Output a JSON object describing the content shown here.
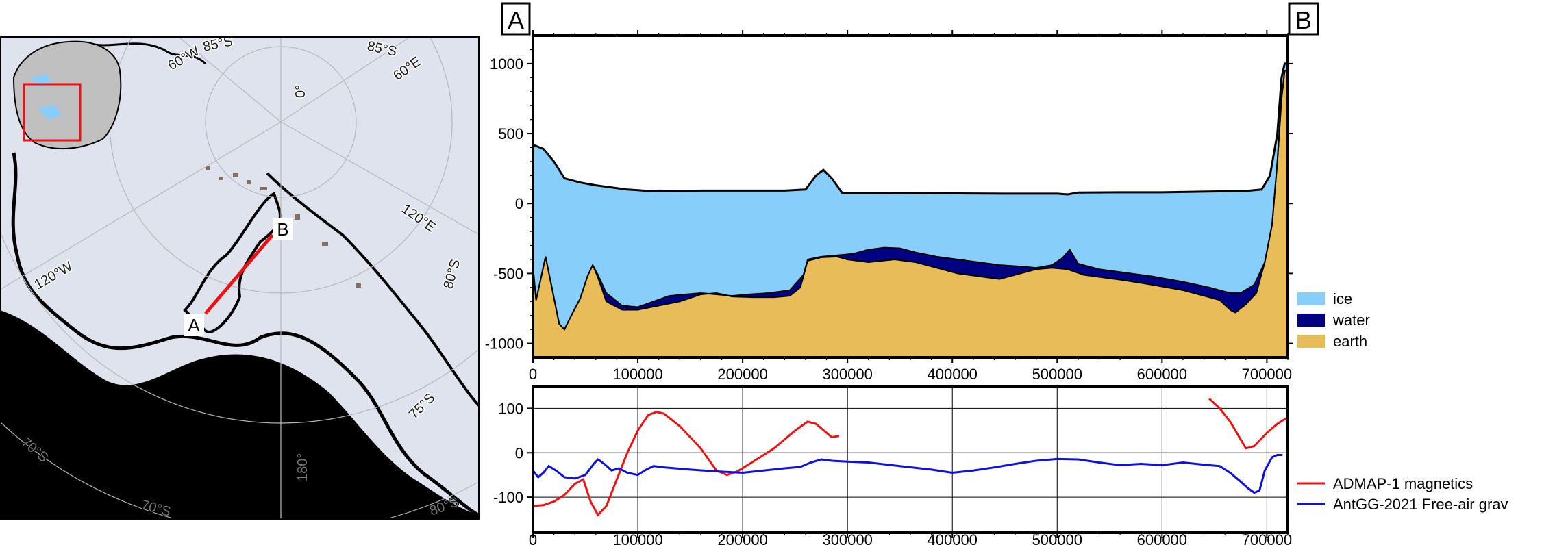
{
  "colors": {
    "ice": "#87cefa",
    "water": "#000080",
    "earth": "#e8bc58",
    "magnetics": "#ee1111",
    "gravity": "#1010dd",
    "ocean": "#000000",
    "ice_surface": "#dfe3ee",
    "profile_line": "#ee1111"
  },
  "map": {
    "graticule_labels": [
      "85°S",
      "85°S",
      "60°W",
      "60°E",
      "0°",
      "120°E",
      "120°W",
      "80°S",
      "75°S",
      "70°S",
      "70°S",
      "180°",
      "80°S",
      "70°S",
      "0°S"
    ],
    "profile_start_label": "A",
    "profile_end_label": "B",
    "inset_icon": "antarctica-inset-icon"
  },
  "profile_corner_labels": {
    "start": "A",
    "end": "B"
  },
  "chart_data": [
    {
      "type": "area",
      "title": "",
      "xlabel": "",
      "ylabel": "",
      "xlim": [
        0,
        720000
      ],
      "ylim": [
        -1100,
        1200
      ],
      "x_ticks": [
        "0",
        "100000",
        "200000",
        "300000",
        "400000",
        "500000",
        "600000",
        "700000"
      ],
      "y_ticks": [
        "1000",
        "500",
        "0",
        "-500",
        "-1000"
      ],
      "legend": [
        "ice",
        "water",
        "earth"
      ],
      "legend_position": "right",
      "surface": [
        [
          0,
          420
        ],
        [
          10,
          390
        ],
        [
          20,
          300
        ],
        [
          30,
          180
        ],
        [
          45,
          150
        ],
        [
          60,
          130
        ],
        [
          75,
          115
        ],
        [
          90,
          100
        ],
        [
          100,
          95
        ],
        [
          110,
          90
        ],
        [
          120,
          92
        ],
        [
          140,
          90
        ],
        [
          160,
          92
        ],
        [
          200,
          92
        ],
        [
          240,
          92
        ],
        [
          260,
          100
        ],
        [
          270,
          200
        ],
        [
          277,
          240
        ],
        [
          285,
          180
        ],
        [
          295,
          75
        ],
        [
          320,
          75
        ],
        [
          400,
          72
        ],
        [
          450,
          70
        ],
        [
          500,
          70
        ],
        [
          510,
          65
        ],
        [
          520,
          78
        ],
        [
          560,
          80
        ],
        [
          600,
          80
        ],
        [
          680,
          90
        ],
        [
          695,
          100
        ],
        [
          703,
          200
        ],
        [
          710,
          500
        ],
        [
          714,
          900
        ],
        [
          717,
          1000
        ],
        [
          720,
          1000
        ]
      ],
      "ice_base": [
        [
          0,
          -450
        ],
        [
          3,
          -690
        ],
        [
          8,
          -520
        ],
        [
          12,
          -380
        ],
        [
          18,
          -600
        ],
        [
          25,
          -860
        ],
        [
          30,
          -900
        ],
        [
          38,
          -780
        ],
        [
          45,
          -680
        ],
        [
          52,
          -520
        ],
        [
          57,
          -440
        ],
        [
          62,
          -510
        ],
        [
          70,
          -640
        ],
        [
          85,
          -730
        ],
        [
          100,
          -740
        ],
        [
          115,
          -700
        ],
        [
          130,
          -660
        ],
        [
          145,
          -650
        ],
        [
          160,
          -640
        ],
        [
          175,
          -650
        ],
        [
          190,
          -660
        ],
        [
          205,
          -650
        ],
        [
          225,
          -640
        ],
        [
          245,
          -620
        ],
        [
          258,
          -510
        ],
        [
          262,
          -400
        ],
        [
          275,
          -380
        ],
        [
          290,
          -370
        ],
        [
          305,
          -360
        ],
        [
          320,
          -330
        ],
        [
          335,
          -315
        ],
        [
          350,
          -320
        ],
        [
          365,
          -350
        ],
        [
          385,
          -380
        ],
        [
          405,
          -400
        ],
        [
          425,
          -420
        ],
        [
          445,
          -440
        ],
        [
          465,
          -450
        ],
        [
          480,
          -460
        ],
        [
          495,
          -440
        ],
        [
          505,
          -390
        ],
        [
          512,
          -330
        ],
        [
          520,
          -430
        ],
        [
          540,
          -470
        ],
        [
          560,
          -490
        ],
        [
          590,
          -520
        ],
        [
          620,
          -560
        ],
        [
          645,
          -600
        ],
        [
          665,
          -640
        ],
        [
          675,
          -640
        ],
        [
          688,
          -580
        ],
        [
          698,
          -420
        ],
        [
          705,
          -150
        ],
        [
          710,
          300
        ],
        [
          714,
          750
        ],
        [
          717,
          950
        ],
        [
          720,
          950
        ]
      ],
      "bed": [
        [
          0,
          -450
        ],
        [
          3,
          -690
        ],
        [
          8,
          -520
        ],
        [
          12,
          -380
        ],
        [
          18,
          -600
        ],
        [
          25,
          -860
        ],
        [
          30,
          -900
        ],
        [
          38,
          -780
        ],
        [
          45,
          -680
        ],
        [
          52,
          -520
        ],
        [
          57,
          -440
        ],
        [
          62,
          -530
        ],
        [
          70,
          -700
        ],
        [
          85,
          -760
        ],
        [
          100,
          -760
        ],
        [
          120,
          -730
        ],
        [
          140,
          -700
        ],
        [
          160,
          -650
        ],
        [
          175,
          -640
        ],
        [
          190,
          -665
        ],
        [
          210,
          -670
        ],
        [
          230,
          -670
        ],
        [
          245,
          -660
        ],
        [
          255,
          -600
        ],
        [
          262,
          -410
        ],
        [
          275,
          -385
        ],
        [
          290,
          -380
        ],
        [
          300,
          -400
        ],
        [
          320,
          -420
        ],
        [
          345,
          -400
        ],
        [
          365,
          -420
        ],
        [
          385,
          -460
        ],
        [
          405,
          -500
        ],
        [
          425,
          -520
        ],
        [
          445,
          -540
        ],
        [
          465,
          -500
        ],
        [
          480,
          -470
        ],
        [
          495,
          -460
        ],
        [
          510,
          -470
        ],
        [
          525,
          -510
        ],
        [
          545,
          -530
        ],
        [
          565,
          -550
        ],
        [
          590,
          -580
        ],
        [
          620,
          -620
        ],
        [
          640,
          -660
        ],
        [
          655,
          -690
        ],
        [
          665,
          -760
        ],
        [
          670,
          -780
        ],
        [
          680,
          -720
        ],
        [
          690,
          -640
        ],
        [
          698,
          -420
        ],
        [
          705,
          -150
        ],
        [
          710,
          300
        ],
        [
          714,
          750
        ],
        [
          717,
          950
        ],
        [
          720,
          950
        ]
      ],
      "x_unit_note": ""
    },
    {
      "type": "line",
      "title": "",
      "xlabel": "",
      "ylabel": "",
      "xlim": [
        0,
        720000
      ],
      "ylim": [
        -180,
        150
      ],
      "x_ticks": [
        "0",
        "100000",
        "200000",
        "300000",
        "400000",
        "500000",
        "600000",
        "700000"
      ],
      "y_ticks": [
        "100",
        "0",
        "-100"
      ],
      "grid": true,
      "legend_position": "bottom-right",
      "series": [
        {
          "name": "ADMAP-1 magnetics",
          "segments": [
            [
              [
                0,
                -120
              ],
              [
                10,
                -118
              ],
              [
                20,
                -110
              ],
              [
                30,
                -95
              ],
              [
                40,
                -70
              ],
              [
                48,
                -60
              ],
              [
                55,
                -110
              ],
              [
                62,
                -140
              ],
              [
                70,
                -120
              ],
              [
                80,
                -60
              ],
              [
                90,
                0
              ],
              [
                100,
                50
              ],
              [
                110,
                85
              ],
              [
                118,
                92
              ],
              [
                125,
                88
              ],
              [
                140,
                60
              ],
              [
                160,
                10
              ],
              [
                175,
                -40
              ],
              [
                185,
                -50
              ],
              [
                195,
                -42
              ],
              [
                210,
                -20
              ],
              [
                230,
                10
              ],
              [
                250,
                50
              ],
              [
                262,
                70
              ],
              [
                270,
                65
              ],
              [
                280,
                45
              ],
              [
                285,
                35
              ],
              [
                292,
                38
              ]
            ],
            [
              [
                645,
                122
              ],
              [
                655,
                100
              ],
              [
                665,
                70
              ],
              [
                675,
                30
              ],
              [
                680,
                10
              ],
              [
                688,
                15
              ],
              [
                700,
                45
              ],
              [
                710,
                65
              ],
              [
                720,
                80
              ]
            ]
          ]
        },
        {
          "name": "AntGG-2021 Free-air grav",
          "segments": [
            [
              [
                0,
                -40
              ],
              [
                5,
                -55
              ],
              [
                10,
                -45
              ],
              [
                15,
                -30
              ],
              [
                22,
                -40
              ],
              [
                30,
                -55
              ],
              [
                40,
                -58
              ],
              [
                50,
                -50
              ],
              [
                58,
                -25
              ],
              [
                62,
                -15
              ],
              [
                68,
                -25
              ],
              [
                75,
                -40
              ],
              [
                82,
                -35
              ],
              [
                90,
                -45
              ],
              [
                100,
                -50
              ],
              [
                108,
                -38
              ],
              [
                115,
                -30
              ],
              [
                125,
                -33
              ],
              [
                150,
                -38
              ],
              [
                175,
                -42
              ],
              [
                200,
                -45
              ],
              [
                220,
                -40
              ],
              [
                240,
                -35
              ],
              [
                255,
                -32
              ],
              [
                265,
                -22
              ],
              [
                275,
                -15
              ],
              [
                285,
                -18
              ],
              [
                300,
                -20
              ],
              [
                320,
                -22
              ],
              [
                350,
                -30
              ],
              [
                380,
                -38
              ],
              [
                400,
                -45
              ],
              [
                420,
                -40
              ],
              [
                440,
                -33
              ],
              [
                460,
                -25
              ],
              [
                480,
                -18
              ],
              [
                500,
                -14
              ],
              [
                520,
                -15
              ],
              [
                540,
                -22
              ],
              [
                560,
                -28
              ],
              [
                580,
                -25
              ],
              [
                600,
                -28
              ],
              [
                620,
                -22
              ],
              [
                640,
                -27
              ],
              [
                655,
                -30
              ],
              [
                665,
                -45
              ],
              [
                675,
                -65
              ],
              [
                682,
                -80
              ],
              [
                688,
                -90
              ],
              [
                693,
                -85
              ],
              [
                698,
                -40
              ],
              [
                705,
                -10
              ],
              [
                710,
                -5
              ],
              [
                715,
                -5
              ]
            ]
          ]
        }
      ]
    }
  ]
}
